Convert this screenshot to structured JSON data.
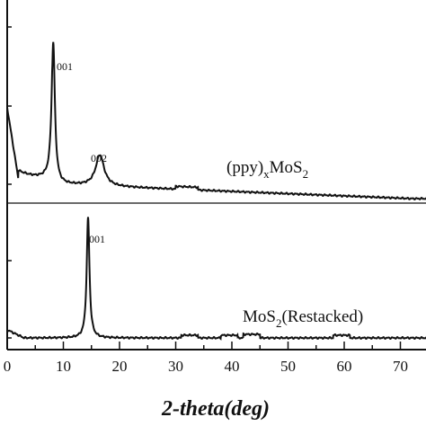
{
  "chart_data": {
    "type": "line",
    "xlabel": "2-theta(deg)",
    "xlim": [
      0,
      75
    ],
    "x_ticks": [
      0,
      10,
      20,
      30,
      40,
      50,
      60,
      70
    ],
    "x_tick_labels": [
      "0",
      "10",
      "20",
      "30",
      "40",
      "50",
      "60",
      "70"
    ],
    "grid": false,
    "legend": "none",
    "series": [
      {
        "name": "(ppy)xMoS2",
        "label_main": "(ppy)",
        "label_sub1": "x",
        "label_mid": "MoS",
        "label_sub2": "2",
        "baseline": 0.0,
        "peaks": [
          {
            "label": "001",
            "x": 8.2,
            "height": 1.0
          },
          {
            "label": "002",
            "x": 16.5,
            "height": 0.22
          }
        ]
      },
      {
        "name": "MoS2(Restacked)",
        "label_main": "MoS",
        "label_sub1": "2",
        "label_mid": "(Restacked)",
        "label_sub2": "",
        "baseline": 0.0,
        "peaks": [
          {
            "label": "001",
            "x": 14.4,
            "height": 1.0
          }
        ]
      }
    ]
  }
}
